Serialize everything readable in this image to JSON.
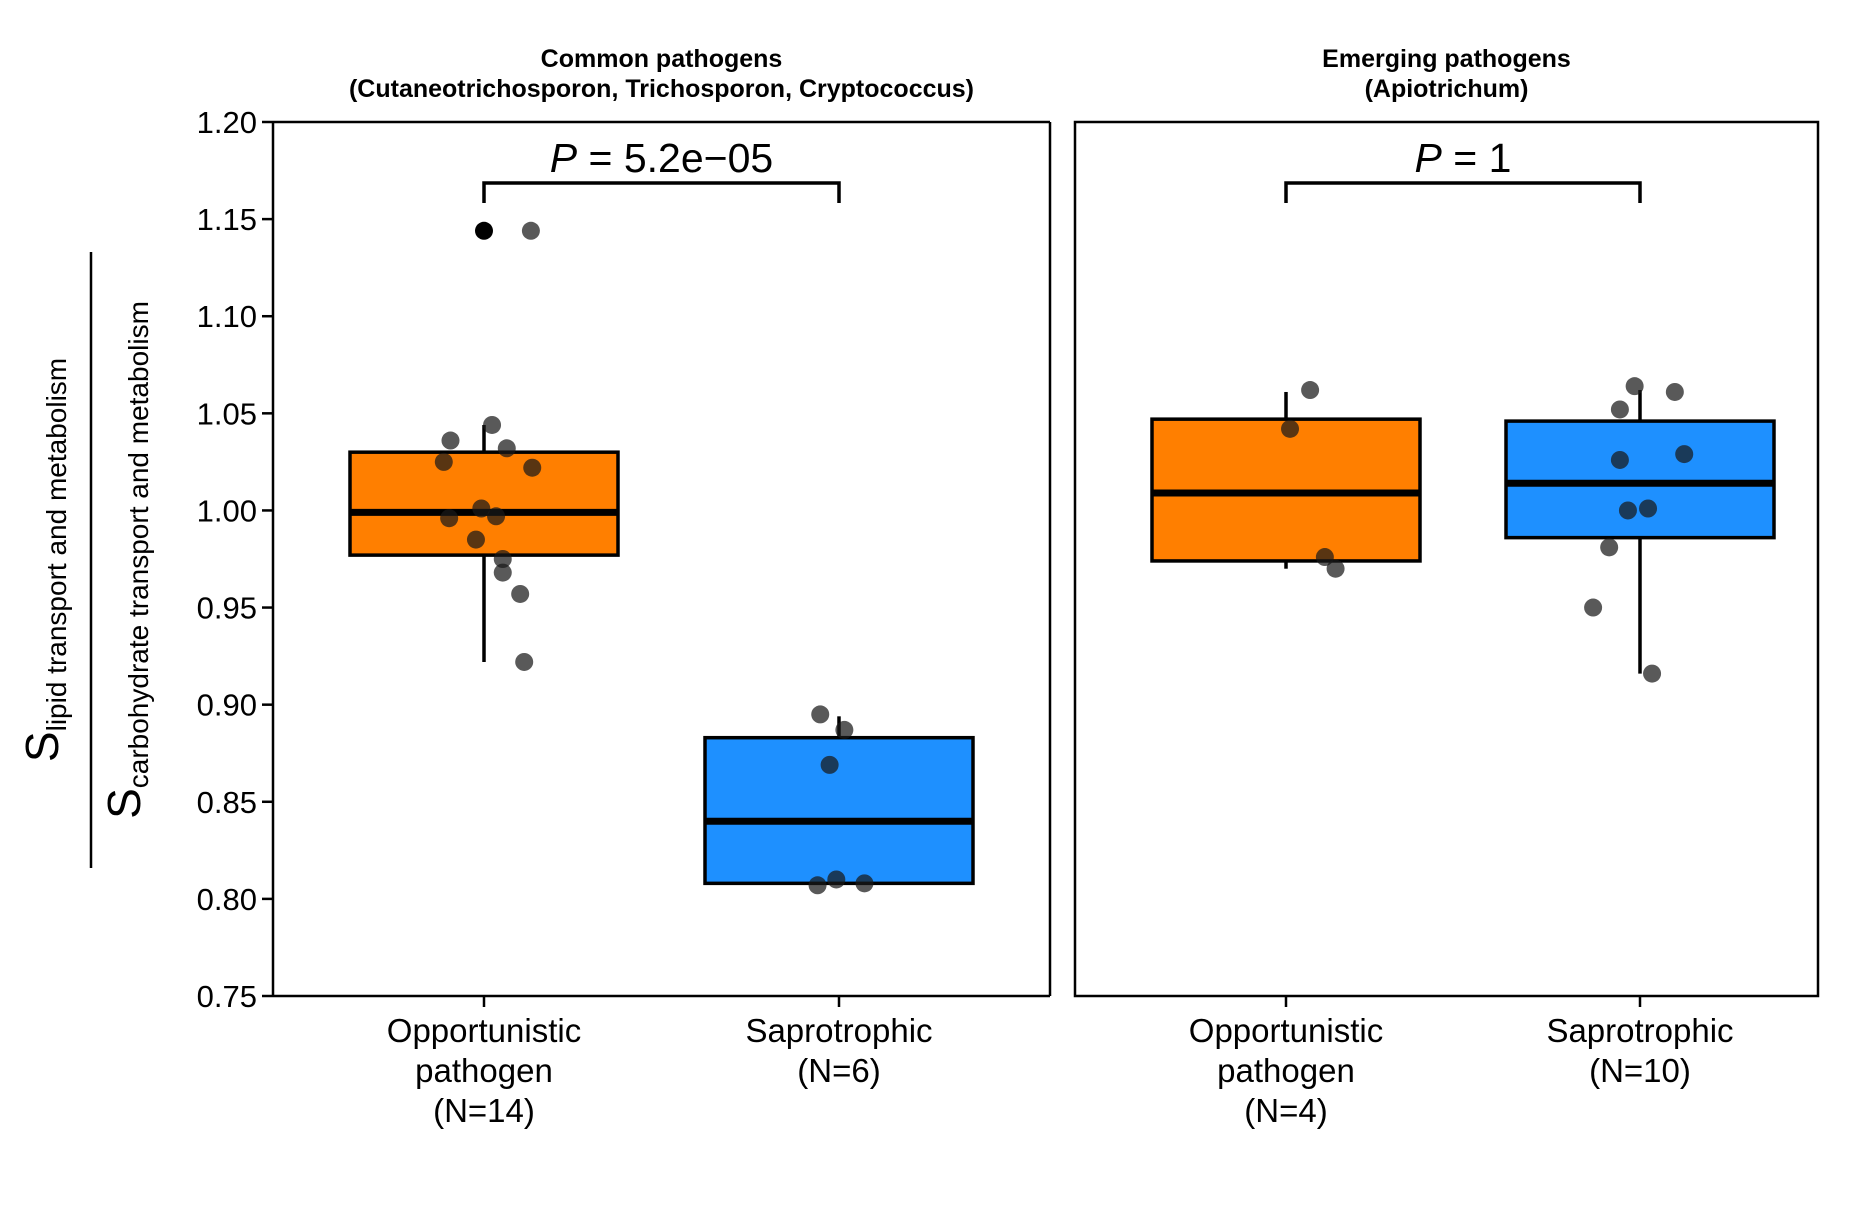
{
  "chart_data": {
    "type": "box",
    "y_axis": {
      "ylim": [
        0.75,
        1.2
      ],
      "ticks": [
        "0.75",
        "0.80",
        "0.85",
        "0.90",
        "0.95",
        "1.00",
        "1.05",
        "1.10",
        "1.15",
        "1.20"
      ],
      "label_numerator_main": "S",
      "label_numerator_sub": "lipid transport and metabolism",
      "label_denominator_main": "S",
      "label_denominator_sub": "carbohydrate transport and metabolism"
    },
    "colors": {
      "Opportunistic pathogen": "#FF7F00",
      "Saprotrophic": "#1E90FF"
    },
    "panels": [
      {
        "title_line1": "Common pathogens",
        "title_line2": "(Cutaneotrichosporon, Trichosporon, Cryptococcus)",
        "p_label": "P",
        "p_value": "5.2e−05",
        "groups": [
          {
            "label_lines": [
              "Opportunistic",
              "pathogen",
              "(N=14)"
            ],
            "category": "Opportunistic pathogen",
            "q1": 0.977,
            "median": 0.999,
            "q3": 1.03,
            "whisker_low": 0.922,
            "whisker_high": 1.044,
            "outliers": [
              1.144
            ],
            "points": [
              {
                "dx": 0.35,
                "y": 1.144
              },
              {
                "dx": -0.25,
                "y": 1.036
              },
              {
                "dx": 0.06,
                "y": 1.044
              },
              {
                "dx": -0.3,
                "y": 1.025
              },
              {
                "dx": 0.17,
                "y": 1.032
              },
              {
                "dx": 0.36,
                "y": 1.022
              },
              {
                "dx": -0.02,
                "y": 1.001
              },
              {
                "dx": -0.26,
                "y": 0.996
              },
              {
                "dx": 0.09,
                "y": 0.997
              },
              {
                "dx": -0.06,
                "y": 0.985
              },
              {
                "dx": 0.14,
                "y": 0.975
              },
              {
                "dx": 0.14,
                "y": 0.968
              },
              {
                "dx": 0.27,
                "y": 0.957
              },
              {
                "dx": 0.3,
                "y": 0.922
              }
            ]
          },
          {
            "label_lines": [
              "Saprotrophic",
              "(N=6)"
            ],
            "category": "Saprotrophic",
            "q1": 0.808,
            "median": 0.84,
            "q3": 0.883,
            "whisker_low": 0.808,
            "whisker_high": 0.894,
            "outliers": [],
            "points": [
              {
                "dx": -0.14,
                "y": 0.895
              },
              {
                "dx": 0.04,
                "y": 0.887
              },
              {
                "dx": -0.07,
                "y": 0.869
              },
              {
                "dx": -0.16,
                "y": 0.807
              },
              {
                "dx": -0.02,
                "y": 0.81
              },
              {
                "dx": 0.19,
                "y": 0.808
              }
            ]
          }
        ]
      },
      {
        "title_line1": "Emerging pathogens",
        "title_line2": "(Apiotrichum)",
        "p_label": "P",
        "p_value": "1",
        "groups": [
          {
            "label_lines": [
              "Opportunistic",
              "pathogen",
              "(N=4)"
            ],
            "category": "Opportunistic pathogen",
            "q1": 0.974,
            "median": 1.009,
            "q3": 1.047,
            "whisker_low": 0.97,
            "whisker_high": 1.061,
            "outliers": [],
            "points": [
              {
                "dx": 0.18,
                "y": 1.062
              },
              {
                "dx": 0.03,
                "y": 1.042
              },
              {
                "dx": 0.29,
                "y": 0.976
              },
              {
                "dx": 0.37,
                "y": 0.97
              }
            ]
          },
          {
            "label_lines": [
              "Saprotrophic",
              "(N=10)"
            ],
            "category": "Saprotrophic",
            "q1": 0.986,
            "median": 1.014,
            "q3": 1.046,
            "whisker_low": 0.916,
            "whisker_high": 1.062,
            "outliers": [],
            "points": [
              {
                "dx": -0.04,
                "y": 1.064
              },
              {
                "dx": 0.26,
                "y": 1.061
              },
              {
                "dx": -0.15,
                "y": 1.052
              },
              {
                "dx": 0.33,
                "y": 1.029
              },
              {
                "dx": -0.15,
                "y": 1.026
              },
              {
                "dx": 0.06,
                "y": 1.001
              },
              {
                "dx": -0.09,
                "y": 1.0
              },
              {
                "dx": -0.23,
                "y": 0.981
              },
              {
                "dx": -0.35,
                "y": 0.95
              },
              {
                "dx": 0.09,
                "y": 0.916
              }
            ]
          }
        ]
      }
    ]
  }
}
